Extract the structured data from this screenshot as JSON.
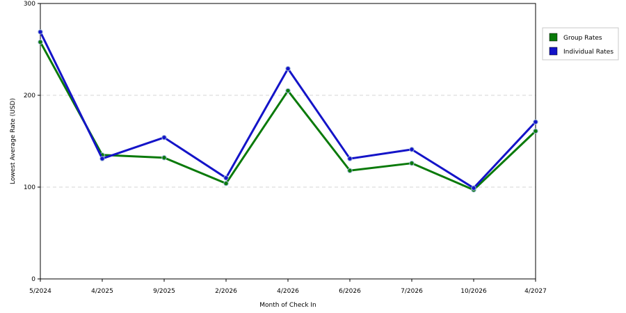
{
  "chart_data": {
    "type": "line",
    "title": "",
    "xlabel": "Month of Check In",
    "ylabel": "Lowest Average Rate (USD)",
    "categories": [
      "5/2024",
      "4/2025",
      "9/2025",
      "2/2026",
      "4/2026",
      "6/2026",
      "7/2026",
      "10/2026",
      "4/2027"
    ],
    "ylim": [
      0,
      300
    ],
    "yticks": [
      0,
      100,
      200,
      300
    ],
    "grid": true,
    "legend_position": "right",
    "series": [
      {
        "name": "Group Rates",
        "color": "#0a7a0a",
        "values": [
          258,
          135,
          132,
          104,
          205,
          118,
          126,
          97,
          161
        ]
      },
      {
        "name": "Individual Rates",
        "color": "#1414c8",
        "values": [
          269,
          131,
          154,
          110,
          229,
          131,
          141,
          99,
          171
        ]
      }
    ]
  }
}
